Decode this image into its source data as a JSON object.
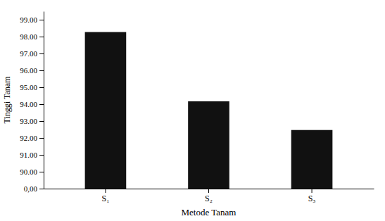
{
  "chart_data": {
    "type": "bar",
    "xlabel": "Metode Tanam",
    "ylabel": "Tinggi Tanam",
    "categories": [
      "S₁",
      "S₂",
      "S₃"
    ],
    "values": [
      98.27,
      94.17,
      92.47
    ],
    "color": "#111111",
    "ylim": [
      0,
      99.5
    ],
    "yticks": [
      {
        "value": 0,
        "label": "0,00"
      },
      {
        "value": 90,
        "label": "90.00"
      },
      {
        "value": 91,
        "label": "91.00"
      },
      {
        "value": 92,
        "label": "92.00"
      },
      {
        "value": 93,
        "label": "93.00"
      },
      {
        "value": 94,
        "label": "94.00"
      },
      {
        "value": 95,
        "label": "95.00"
      },
      {
        "value": 96,
        "label": "96.00"
      },
      {
        "value": 97,
        "label": "97.00"
      },
      {
        "value": 98,
        "label": "98.00"
      },
      {
        "value": 99,
        "label": "99.00"
      }
    ],
    "grid": false
  }
}
